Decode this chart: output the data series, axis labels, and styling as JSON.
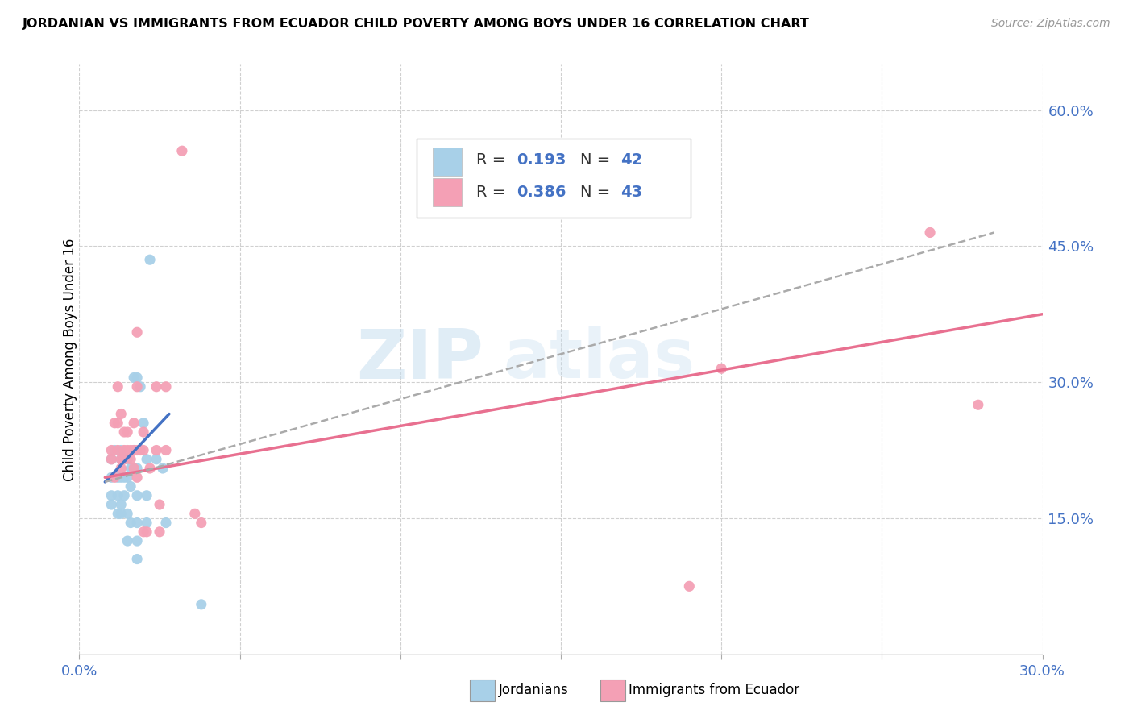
{
  "title": "JORDANIAN VS IMMIGRANTS FROM ECUADOR CHILD POVERTY AMONG BOYS UNDER 16 CORRELATION CHART",
  "source": "Source: ZipAtlas.com",
  "ylabel": "Child Poverty Among Boys Under 16",
  "xlim": [
    0.0,
    0.3
  ],
  "ylim": [
    0.0,
    0.65
  ],
  "xticks": [
    0.0,
    0.05,
    0.1,
    0.15,
    0.2,
    0.25,
    0.3
  ],
  "xtick_labels": [
    "0.0%",
    "",
    "",
    "",
    "",
    "",
    "30.0%"
  ],
  "ytick_labels_right": [
    "60.0%",
    "45.0%",
    "30.0%",
    "15.0%"
  ],
  "ytick_values_right": [
    0.6,
    0.45,
    0.3,
    0.15
  ],
  "color_blue": "#a8d0e8",
  "color_pink": "#f4a0b5",
  "color_blue_text": "#4472c4",
  "color_pink_text": "#e87090",
  "watermark": "ZIPatlas",
  "blue_scatter": [
    [
      0.01,
      0.195
    ],
    [
      0.01,
      0.175
    ],
    [
      0.01,
      0.215
    ],
    [
      0.01,
      0.165
    ],
    [
      0.011,
      0.225
    ],
    [
      0.012,
      0.195
    ],
    [
      0.012,
      0.175
    ],
    [
      0.012,
      0.155
    ],
    [
      0.013,
      0.225
    ],
    [
      0.013,
      0.215
    ],
    [
      0.013,
      0.195
    ],
    [
      0.013,
      0.165
    ],
    [
      0.013,
      0.155
    ],
    [
      0.014,
      0.215
    ],
    [
      0.014,
      0.195
    ],
    [
      0.014,
      0.175
    ],
    [
      0.015,
      0.215
    ],
    [
      0.015,
      0.195
    ],
    [
      0.015,
      0.155
    ],
    [
      0.015,
      0.125
    ],
    [
      0.016,
      0.205
    ],
    [
      0.016,
      0.185
    ],
    [
      0.016,
      0.145
    ],
    [
      0.017,
      0.305
    ],
    [
      0.017,
      0.225
    ],
    [
      0.017,
      0.205
    ],
    [
      0.018,
      0.305
    ],
    [
      0.018,
      0.205
    ],
    [
      0.018,
      0.175
    ],
    [
      0.018,
      0.145
    ],
    [
      0.018,
      0.125
    ],
    [
      0.018,
      0.105
    ],
    [
      0.019,
      0.295
    ],
    [
      0.02,
      0.255
    ],
    [
      0.021,
      0.215
    ],
    [
      0.021,
      0.175
    ],
    [
      0.021,
      0.145
    ],
    [
      0.022,
      0.435
    ],
    [
      0.024,
      0.215
    ],
    [
      0.026,
      0.205
    ],
    [
      0.027,
      0.145
    ],
    [
      0.038,
      0.055
    ]
  ],
  "pink_scatter": [
    [
      0.01,
      0.215
    ],
    [
      0.01,
      0.225
    ],
    [
      0.011,
      0.195
    ],
    [
      0.011,
      0.255
    ],
    [
      0.012,
      0.225
    ],
    [
      0.012,
      0.255
    ],
    [
      0.012,
      0.295
    ],
    [
      0.013,
      0.205
    ],
    [
      0.013,
      0.215
    ],
    [
      0.013,
      0.265
    ],
    [
      0.014,
      0.215
    ],
    [
      0.014,
      0.225
    ],
    [
      0.014,
      0.245
    ],
    [
      0.015,
      0.225
    ],
    [
      0.015,
      0.245
    ],
    [
      0.016,
      0.215
    ],
    [
      0.016,
      0.225
    ],
    [
      0.017,
      0.205
    ],
    [
      0.017,
      0.225
    ],
    [
      0.017,
      0.255
    ],
    [
      0.018,
      0.195
    ],
    [
      0.018,
      0.225
    ],
    [
      0.018,
      0.295
    ],
    [
      0.018,
      0.355
    ],
    [
      0.019,
      0.225
    ],
    [
      0.02,
      0.225
    ],
    [
      0.02,
      0.245
    ],
    [
      0.02,
      0.135
    ],
    [
      0.021,
      0.135
    ],
    [
      0.022,
      0.205
    ],
    [
      0.024,
      0.225
    ],
    [
      0.024,
      0.295
    ],
    [
      0.025,
      0.135
    ],
    [
      0.025,
      0.165
    ],
    [
      0.027,
      0.225
    ],
    [
      0.027,
      0.295
    ],
    [
      0.032,
      0.555
    ],
    [
      0.036,
      0.155
    ],
    [
      0.038,
      0.145
    ],
    [
      0.19,
      0.075
    ],
    [
      0.2,
      0.315
    ],
    [
      0.265,
      0.465
    ],
    [
      0.28,
      0.275
    ]
  ],
  "blue_line_x": [
    0.008,
    0.028
  ],
  "blue_line_y": [
    0.19,
    0.265
  ],
  "pink_line_x": [
    0.008,
    0.3
  ],
  "pink_line_y": [
    0.195,
    0.375
  ],
  "gray_line_x": [
    0.008,
    0.285
  ],
  "gray_line_y": [
    0.19,
    0.465
  ]
}
